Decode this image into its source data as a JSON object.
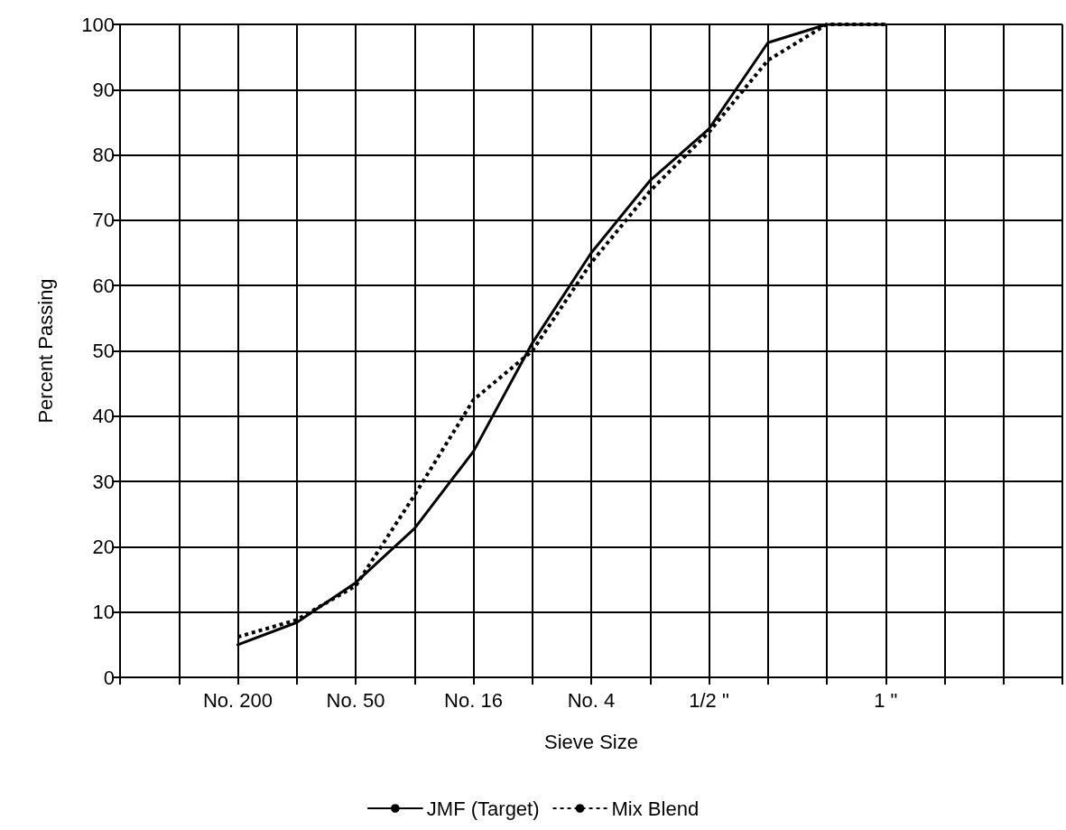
{
  "chart_data": {
    "type": "line",
    "xlabel": "Sieve Size",
    "ylabel": "Percent Passing",
    "categories": [
      null,
      null,
      "No. 200",
      null,
      "No. 50",
      null,
      "No. 16",
      null,
      "No. 4",
      null,
      "1/2 \"",
      null,
      null,
      "1 \"",
      null,
      null,
      null
    ],
    "ylim": [
      0,
      100
    ],
    "yticks": [
      0,
      10,
      20,
      30,
      40,
      50,
      60,
      70,
      80,
      90,
      100
    ],
    "grid": true,
    "legend": "bottom",
    "series": [
      {
        "name": "JMF (Target)",
        "color": "#000000",
        "line_style": "solid",
        "values": [
          null,
          null,
          5.0,
          8.4,
          14.5,
          22.8,
          34.6,
          51.2,
          65.0,
          76.1,
          84.0,
          97.2,
          100,
          100,
          null,
          null,
          null
        ]
      },
      {
        "name": "Mix Blend",
        "color": "#000000",
        "line_style": "dotted",
        "values": [
          null,
          null,
          6.2,
          8.8,
          14.0,
          27.9,
          42.5,
          50.0,
          63.5,
          74.5,
          83.5,
          94.5,
          100,
          100,
          null,
          null,
          null
        ]
      }
    ]
  }
}
